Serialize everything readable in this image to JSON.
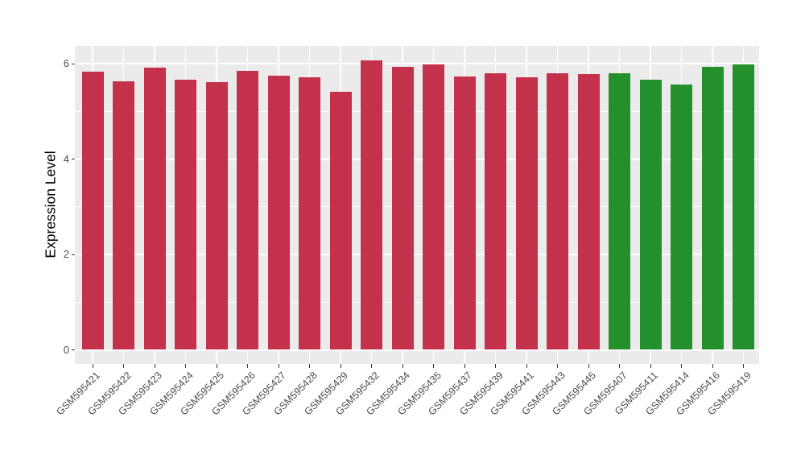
{
  "chart_data": {
    "type": "bar",
    "title": "",
    "xlabel": "",
    "ylabel": "Expression Level",
    "categories": [
      "GSM595421",
      "GSM595422",
      "GSM595423",
      "GSM595424",
      "GSM595425",
      "GSM595426",
      "GSM595427",
      "GSM595428",
      "GSM595429",
      "GSM595432",
      "GSM595434",
      "GSM595435",
      "GSM595437",
      "GSM595439",
      "GSM595441",
      "GSM595443",
      "GSM595445",
      "GSM595407",
      "GSM595411",
      "GSM595414",
      "GSM595416",
      "GSM595419"
    ],
    "values": [
      5.83,
      5.63,
      5.92,
      5.67,
      5.62,
      5.85,
      5.76,
      5.72,
      5.42,
      6.07,
      5.94,
      5.98,
      5.74,
      5.81,
      5.72,
      5.8,
      5.79,
      5.8,
      5.67,
      5.57,
      5.93,
      5.99
    ],
    "groups": [
      "red",
      "red",
      "red",
      "red",
      "red",
      "red",
      "red",
      "red",
      "red",
      "red",
      "red",
      "red",
      "red",
      "red",
      "red",
      "red",
      "red",
      "green",
      "green",
      "green",
      "green",
      "green"
    ],
    "group_colors": {
      "red": "#C3314B",
      "green": "#24902B"
    },
    "y_ticks": [
      0,
      2,
      4,
      6
    ],
    "y_minor_ticks": [
      1,
      3,
      5
    ],
    "ylim": [
      -0.3,
      6.38
    ],
    "grid": "on",
    "legend_position": "none",
    "panel_background": "#EBEBEB",
    "gridline_color": "#FFFFFF",
    "tick_color": "#333333",
    "axis_text_color": "#4D4D4D"
  }
}
